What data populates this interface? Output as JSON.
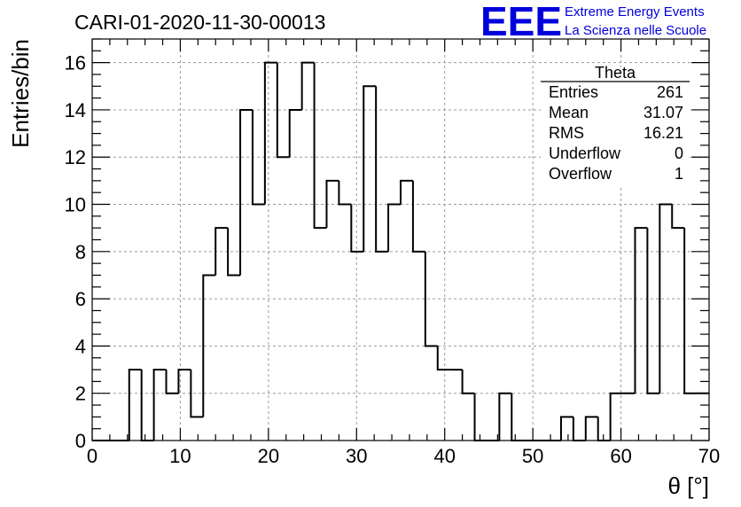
{
  "title": "CARI-01-2020-11-30-00013",
  "logo": {
    "mark": "EEE",
    "line1": "Extreme Energy Events",
    "line2": "La Scienza nelle Scuole",
    "color": "#0000dd"
  },
  "stats": {
    "name": "Theta",
    "rows": [
      {
        "label": "Entries",
        "value": "261"
      },
      {
        "label": "Mean",
        "value": "31.07"
      },
      {
        "label": "RMS",
        "value": "16.21"
      },
      {
        "label": "Underflow",
        "value": "0"
      },
      {
        "label": "Overflow",
        "value": "1"
      }
    ]
  },
  "chart_data": {
    "type": "bar",
    "style": "step-histogram",
    "xlabel": "θ [°]",
    "ylabel": "Entries/bin",
    "xlim": [
      0,
      70
    ],
    "ylim": [
      0,
      17
    ],
    "grid": true,
    "bin_width": 1.4,
    "bin_edges_start": 0,
    "x_ticks": [
      0,
      10,
      20,
      30,
      40,
      50,
      60,
      70
    ],
    "y_ticks": [
      0,
      2,
      4,
      6,
      8,
      10,
      12,
      14,
      16
    ],
    "values": [
      0,
      0,
      0,
      3,
      0,
      3,
      2,
      3,
      1,
      7,
      9,
      7,
      14,
      10,
      16,
      12,
      14,
      16,
      9,
      11,
      10,
      8,
      15,
      8,
      10,
      11,
      8,
      4,
      3,
      3,
      2,
      0,
      0,
      2,
      0,
      0,
      0,
      0,
      1,
      0,
      1,
      0,
      2,
      2,
      9,
      2,
      10,
      9,
      2,
      2
    ]
  }
}
